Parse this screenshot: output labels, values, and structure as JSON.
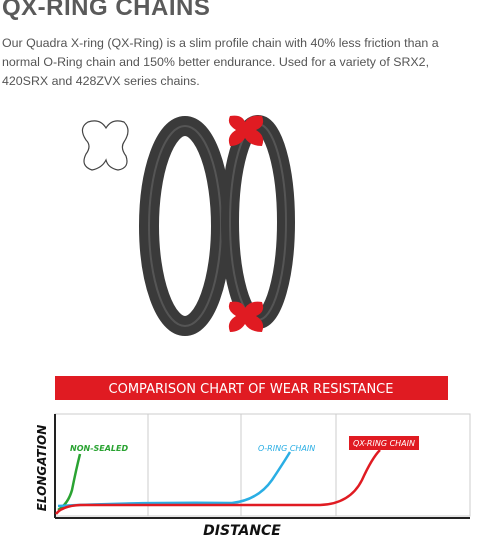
{
  "header": {
    "title": "QX-RING CHAINS"
  },
  "description": "Our Quadra X-ring (QX-Ring) is a slim profile chain with 40% less friction than a normal O-Ring chain and 150% better endurance. Used for a variety of SRX2, 420SRX and 428ZVX series chains.",
  "chart": {
    "title": "COMPARISON CHART OF WEAR RESISTANCE",
    "y_label": "ELONGATION",
    "x_label": "DISTANCE",
    "curve_labels": [
      "NON-SEALED",
      "O-RING CHAIN",
      "QX-RING CHAIN"
    ]
  }
}
